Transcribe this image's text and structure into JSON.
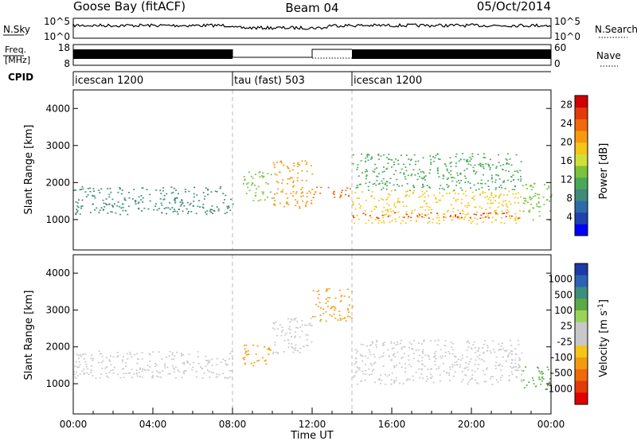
{
  "header": {
    "site": "Goose Bay (fitACF)",
    "beam": "Beam 04",
    "date": "05/Oct/2014"
  },
  "noise_panel": {
    "left_label": "N.Sky",
    "left_ticks": [
      "10^5",
      "10^0"
    ],
    "right_label": "N.Search",
    "right_ticks": [
      "10^5",
      "10^0"
    ]
  },
  "freq_panel": {
    "left_label_1": "Freq.",
    "left_label_2": "[MHz]",
    "left_ticks": [
      "18",
      "8"
    ],
    "right_label": "Nave",
    "right_ticks": [
      "60",
      "0"
    ]
  },
  "cpid": {
    "label": "CPID",
    "segments": [
      {
        "name": "icescan 1200",
        "start_hour": 0,
        "end_hour": 8
      },
      {
        "name": "tau (fast) 503",
        "start_hour": 8,
        "end_hour": 14
      },
      {
        "name": "icescan 1200",
        "start_hour": 14,
        "end_hour": 24
      }
    ]
  },
  "chart_data": [
    {
      "type": "heatmap",
      "name": "power",
      "ylabel": "Slant Range [km]",
      "xlim": [
        0,
        24
      ],
      "ylim": [
        180,
        4500
      ],
      "yticks": [
        "1000",
        "2000",
        "3000",
        "4000"
      ],
      "colorbar": {
        "label": "Power [dB]",
        "tick_labels": [
          "4",
          "8",
          "12",
          "16",
          "20",
          "24",
          "28"
        ],
        "tick_values": [
          4,
          8,
          12,
          16,
          20,
          24,
          28
        ],
        "range": [
          0,
          30
        ],
        "colors": [
          "#0000ff",
          "#2040b0",
          "#2e6aa8",
          "#3f8a7a",
          "#4aa85a",
          "#7cc23c",
          "#cfe03a",
          "#f5c518",
          "#f59a10",
          "#ef6a0a",
          "#e23a08",
          "#d00000"
        ]
      },
      "bands": [
        {
          "x": [
            0.0,
            8.0
          ],
          "y": [
            1150,
            1900
          ],
          "value": 8
        },
        {
          "x": [
            8.5,
            10.0
          ],
          "y": [
            1500,
            2300
          ],
          "value": 14
        },
        {
          "x": [
            10.0,
            12.0
          ],
          "y": [
            1300,
            2600
          ],
          "value": 20
        },
        {
          "x": [
            12.0,
            14.0
          ],
          "y": [
            1600,
            1900
          ],
          "value": 24
        },
        {
          "x": [
            14.0,
            22.5
          ],
          "y": [
            900,
            1800
          ],
          "value": 18
        },
        {
          "x": [
            14.0,
            22.5
          ],
          "y": [
            1050,
            1200
          ],
          "value": 26
        },
        {
          "x": [
            14.0,
            22.5
          ],
          "y": [
            1800,
            2800
          ],
          "value": 10
        },
        {
          "x": [
            22.5,
            24.0
          ],
          "y": [
            1000,
            2000
          ],
          "value": 14
        }
      ]
    },
    {
      "type": "heatmap",
      "name": "velocity",
      "ylabel": "Slant Range [km]",
      "xlabel": "Time UT",
      "xlim": [
        0,
        24
      ],
      "ylim": [
        180,
        4500
      ],
      "yticks": [
        "1000",
        "2000",
        "3000",
        "4000"
      ],
      "xtick_labels": [
        "00:00",
        "04:00",
        "08:00",
        "12:00",
        "16:00",
        "20:00",
        "00:00"
      ],
      "xtick_values": [
        0,
        4,
        8,
        12,
        16,
        20,
        24
      ],
      "colorbar": {
        "label": "Velocity [m s-1]",
        "tick_labels": [
          "1000",
          "500",
          "100",
          "25",
          "-25",
          "-100",
          "-500",
          "-1000"
        ],
        "colors": [
          "#1d3aa8",
          "#2c62b8",
          "#3e8e7c",
          "#5aaa45",
          "#9bd35a",
          "#c8c8c8",
          "#c8c8c8",
          "#f5c518",
          "#f59a10",
          "#ef6a0a",
          "#e23a08",
          "#e00000"
        ]
      },
      "bands": [
        {
          "x": [
            0.0,
            8.0
          ],
          "y": [
            1150,
            1900
          ],
          "value": 0
        },
        {
          "x": [
            8.5,
            10.0
          ],
          "y": [
            1500,
            2100
          ],
          "value": -300
        },
        {
          "x": [
            10.0,
            12.0
          ],
          "y": [
            1800,
            2800
          ],
          "value": 0
        },
        {
          "x": [
            12.0,
            14.0
          ],
          "y": [
            2700,
            3600
          ],
          "value": -300
        },
        {
          "x": [
            14.0,
            22.5
          ],
          "y": [
            1000,
            2200
          ],
          "value": 0
        },
        {
          "x": [
            22.5,
            24.0
          ],
          "y": [
            900,
            1500
          ],
          "value": 100
        }
      ]
    }
  ]
}
